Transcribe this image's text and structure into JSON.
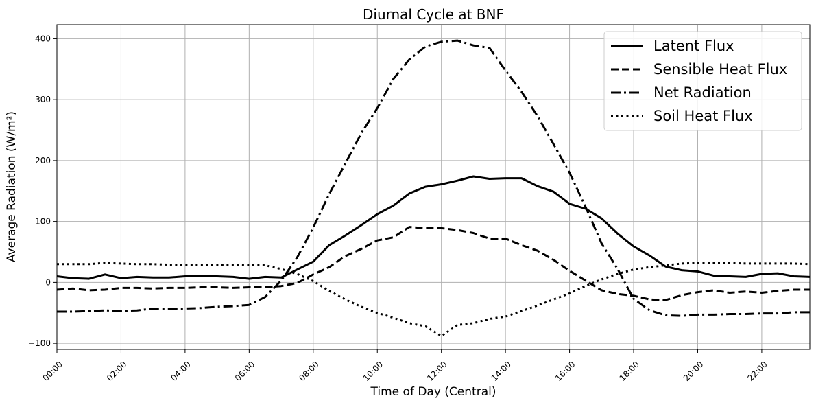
{
  "chart_data": {
    "type": "line",
    "title": "Diurnal Cycle at BNF",
    "xlabel": "Time of Day (Central)",
    "ylabel": "Average Radiation (W/m²)",
    "xlim": [
      0,
      23.5
    ],
    "ylim": [
      -110,
      423
    ],
    "xticks": [
      0,
      2,
      4,
      6,
      8,
      10,
      12,
      14,
      16,
      18,
      20,
      22
    ],
    "xtick_labels": [
      "00:00",
      "02:00",
      "04:00",
      "06:00",
      "08:00",
      "10:00",
      "12:00",
      "14:00",
      "16:00",
      "18:00",
      "20:00",
      "22:00"
    ],
    "yticks": [
      -100,
      0,
      100,
      200,
      300,
      400
    ],
    "ytick_labels": [
      "−100",
      "0",
      "100",
      "200",
      "300",
      "400"
    ],
    "grid": true,
    "legend_position": "top-right",
    "x": [
      0,
      0.5,
      1,
      1.5,
      2,
      2.5,
      3,
      3.5,
      4,
      4.5,
      5,
      5.5,
      6,
      6.5,
      7,
      7.5,
      8,
      8.5,
      9,
      9.5,
      10,
      10.5,
      11,
      11.5,
      12,
      12.5,
      13,
      13.5,
      14,
      14.5,
      15,
      15.5,
      16,
      16.5,
      17,
      17.5,
      18,
      18.5,
      19,
      19.5,
      20,
      20.5,
      21,
      21.5,
      22,
      22.5,
      23,
      23.5
    ],
    "series": [
      {
        "name": "Latent Flux",
        "style": "solid",
        "values": [
          10,
          7,
          6,
          13,
          7,
          9,
          8,
          8,
          10,
          10,
          10,
          9,
          6,
          9,
          8,
          21,
          34,
          61,
          77,
          94,
          112,
          126,
          146,
          157,
          161,
          167,
          174,
          170,
          171,
          171,
          158,
          149,
          129,
          121,
          105,
          80,
          59,
          44,
          26,
          20,
          18,
          11,
          10,
          9,
          14,
          15,
          10,
          9
        ]
      },
      {
        "name": "Sensible Heat Flux",
        "style": "dashed",
        "values": [
          -12,
          -10,
          -13,
          -12,
          -9,
          -9,
          -10,
          -9,
          -9,
          -8,
          -8,
          -9,
          -8,
          -8,
          -6,
          -1,
          13,
          25,
          43,
          55,
          69,
          74,
          91,
          89,
          89,
          86,
          81,
          72,
          72,
          61,
          52,
          37,
          19,
          3,
          -13,
          -19,
          -22,
          -28,
          -29,
          -21,
          -16,
          -13,
          -17,
          -15,
          -17,
          -14,
          -12,
          -12
        ]
      },
      {
        "name": "Net Radiation",
        "style": "dashdot",
        "values": [
          -48,
          -48,
          -47,
          -46,
          -47,
          -46,
          -43,
          -43,
          -43,
          -42,
          -40,
          -39,
          -37,
          -24,
          3,
          41,
          90,
          145,
          195,
          245,
          286,
          334,
          366,
          387,
          395,
          397,
          389,
          385,
          348,
          313,
          273,
          227,
          180,
          124,
          64,
          22,
          -27,
          -46,
          -54,
          -55,
          -53,
          -53,
          -52,
          -52,
          -51,
          -51,
          -49,
          -49
        ]
      },
      {
        "name": "Soil Heat Flux",
        "style": "dotted",
        "values": [
          30,
          30,
          30,
          32,
          31,
          30,
          30,
          29,
          29,
          29,
          29,
          29,
          28,
          28,
          22,
          14,
          2,
          -14,
          -28,
          -40,
          -50,
          -58,
          -67,
          -72,
          -88,
          -70,
          -67,
          -60,
          -56,
          -47,
          -38,
          -28,
          -18,
          -6,
          5,
          14,
          21,
          25,
          28,
          31,
          32,
          32,
          32,
          31,
          31,
          31,
          31,
          30
        ]
      }
    ]
  }
}
